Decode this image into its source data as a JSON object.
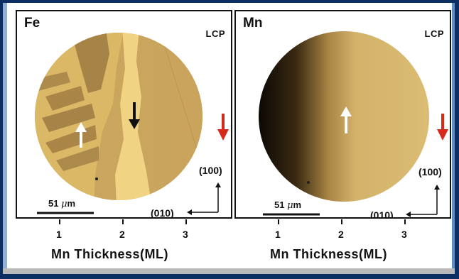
{
  "panels": [
    {
      "element": "Fe",
      "polarization": "LCP",
      "axis_vertical": "(100)",
      "axis_horizontal": "(010)",
      "scale_value": "51",
      "scale_unit": "μ",
      "scale_suffix": "m",
      "xaxis_label": "Mn Thickness(ML)",
      "ticks": [
        "1",
        "2",
        "3"
      ]
    },
    {
      "element": "Mn",
      "polarization": "LCP",
      "axis_vertical": "(100)",
      "axis_horizontal": "(010)",
      "scale_value": "51",
      "scale_unit": "μ",
      "scale_suffix": "m",
      "xaxis_label": "Mn Thickness(ML)",
      "ticks": [
        "1",
        "2",
        "3"
      ]
    }
  ],
  "colors": {
    "domain_light": "#e2bd6a",
    "domain_dark": "#a88445",
    "domain_mid": "#c59f58",
    "reference_arrow": "#d62a1c",
    "frame": "#5e8ec4",
    "background": "#0b2f62"
  }
}
